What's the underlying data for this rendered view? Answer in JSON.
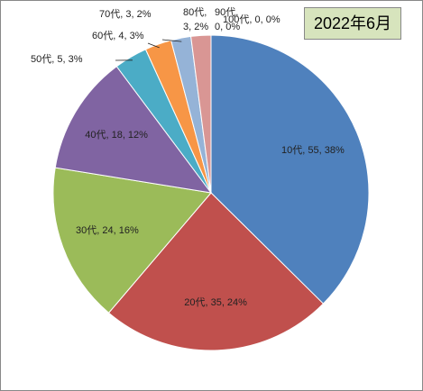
{
  "chart_data": {
    "type": "pie",
    "title": "2022年6月",
    "categories": [
      "10代",
      "20代",
      "30代",
      "40代",
      "50代",
      "60代",
      "70代",
      "80代",
      "90代",
      "100代"
    ],
    "values": [
      55,
      35,
      24,
      18,
      5,
      4,
      3,
      3,
      0,
      0
    ],
    "value_labels": [
      "10代, 55, 38%",
      "20代, 35, 24%",
      "30代, 24, 16%",
      "40代, 18, 12%",
      "50代, 5, 3%",
      "60代, 4, 3%",
      "70代, 3, 2%",
      "80代, 3, 2%",
      "90代, 0, 0%",
      "100代, 0, 0%"
    ],
    "colors": [
      "#4f81bd",
      "#c0504d",
      "#9bbb59",
      "#8064a2",
      "#4bacc6",
      "#f79646",
      "#95b3d7",
      "#d99694",
      "#c3d69b",
      "#b2a2c7"
    ]
  }
}
